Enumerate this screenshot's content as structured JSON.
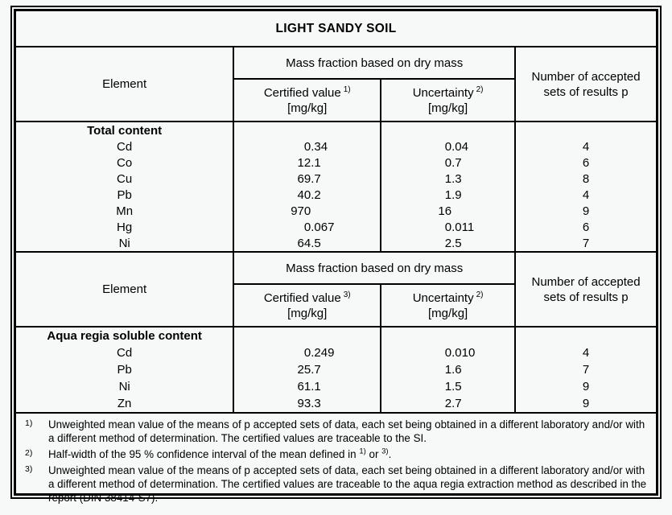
{
  "title": "LIGHT SANDY SOIL",
  "colors": {
    "background": "#f7f8f8",
    "border": "#000000",
    "text": "#000000"
  },
  "table": {
    "sections": [
      {
        "header": {
          "element": "Element",
          "mass_fraction": "Mass fraction based on dry mass",
          "certified_label": "Certified value",
          "certified_note": "1)",
          "certified_unit": "[mg/kg]",
          "uncertainty_label": "Uncertainty",
          "uncertainty_note": "2)",
          "uncertainty_unit": "[mg/kg]",
          "accepted_sets": "Number of accepted sets of results p"
        },
        "group_label": "Total content",
        "rows": [
          {
            "element": "Cd",
            "certified": "0.34",
            "uncertainty": "0.04",
            "p": "4"
          },
          {
            "element": "Co",
            "certified": "12.1",
            "uncertainty": "0.7",
            "p": "6"
          },
          {
            "element": "Cu",
            "certified": "69.7",
            "uncertainty": "1.3",
            "p": "8"
          },
          {
            "element": "Pb",
            "certified": "40.2",
            "uncertainty": "1.9",
            "p": "4"
          },
          {
            "element": "Mn",
            "certified": "970",
            "uncertainty": "16",
            "p": "9"
          },
          {
            "element": "Hg",
            "certified": "0.067",
            "uncertainty": "0.011",
            "p": "6"
          },
          {
            "element": "Ni",
            "certified": "64.5",
            "uncertainty": "2.5",
            "p": "7"
          }
        ]
      },
      {
        "header": {
          "element": "Element",
          "mass_fraction": "Mass fraction based on dry mass",
          "certified_label": "Certified value",
          "certified_note": "3)",
          "certified_unit": "[mg/kg]",
          "uncertainty_label": "Uncertainty",
          "uncertainty_note": "2)",
          "uncertainty_unit": "[mg/kg]",
          "accepted_sets": "Number of accepted sets of results p"
        },
        "group_label": "Aqua regia soluble content",
        "rows": [
          {
            "element": "Cd",
            "certified": "0.249",
            "uncertainty": "0.010",
            "p": "4"
          },
          {
            "element": "Pb",
            "certified": "25.7",
            "uncertainty": "1.6",
            "p": "7"
          },
          {
            "element": "Ni",
            "certified": "61.1",
            "uncertainty": "1.5",
            "p": "9"
          },
          {
            "element": "Zn",
            "certified": "93.3",
            "uncertainty": "2.7",
            "p": "9"
          }
        ]
      }
    ]
  },
  "footnotes": [
    {
      "marker": "1)",
      "text": "Unweighted mean value of the means of p accepted sets of data, each set being obtained in a different laboratory and/or with a different method of determination. The certified values are traceable to the SI."
    },
    {
      "marker": "2)",
      "prefix": "Half-width of the 95 % confidence interval of the mean defined in ",
      "ref_a": "1)",
      "middle": " or ",
      "ref_b": "3)",
      "suffix": "."
    },
    {
      "marker": "3)",
      "text": "Unweighted mean value of the means of p accepted sets of data, each set being obtained in a different laboratory and/or with a different method of determination. The certified values are traceable to the aqua regia extraction method as described in the report (DIN 38414-S7)."
    }
  ]
}
